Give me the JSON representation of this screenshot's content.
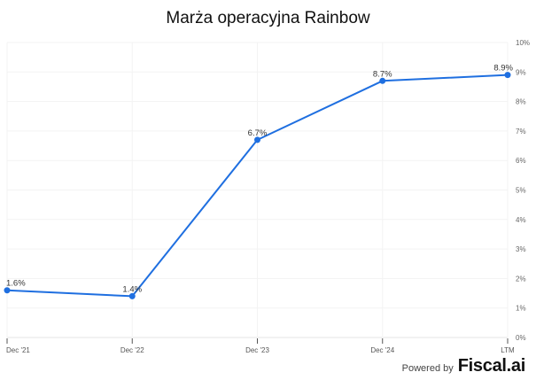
{
  "chart_data": {
    "type": "line",
    "title": "Marża operacyjna Rainbow",
    "categories": [
      "Dec '21",
      "Dec '22",
      "Dec '23",
      "Dec '24",
      "LTM"
    ],
    "series": [
      {
        "name": "Marża operacyjna",
        "values": [
          1.6,
          1.4,
          6.7,
          8.7,
          8.9
        ],
        "labels": [
          "1.6%",
          "1.4%",
          "6.7%",
          "8.7%",
          "8.9%"
        ],
        "color": "#1f6fe0"
      }
    ],
    "xlabel": "",
    "ylabel": "",
    "ylim": [
      0,
      10
    ],
    "yticks": [
      "0%",
      "1%",
      "2%",
      "3%",
      "4%",
      "5%",
      "6%",
      "7%",
      "8%",
      "9%",
      "10%"
    ],
    "y_axis_position": "right",
    "grid": true,
    "legend": "none"
  },
  "footer": {
    "powered_by": "Powered by",
    "brand": "Fiscal.ai"
  }
}
